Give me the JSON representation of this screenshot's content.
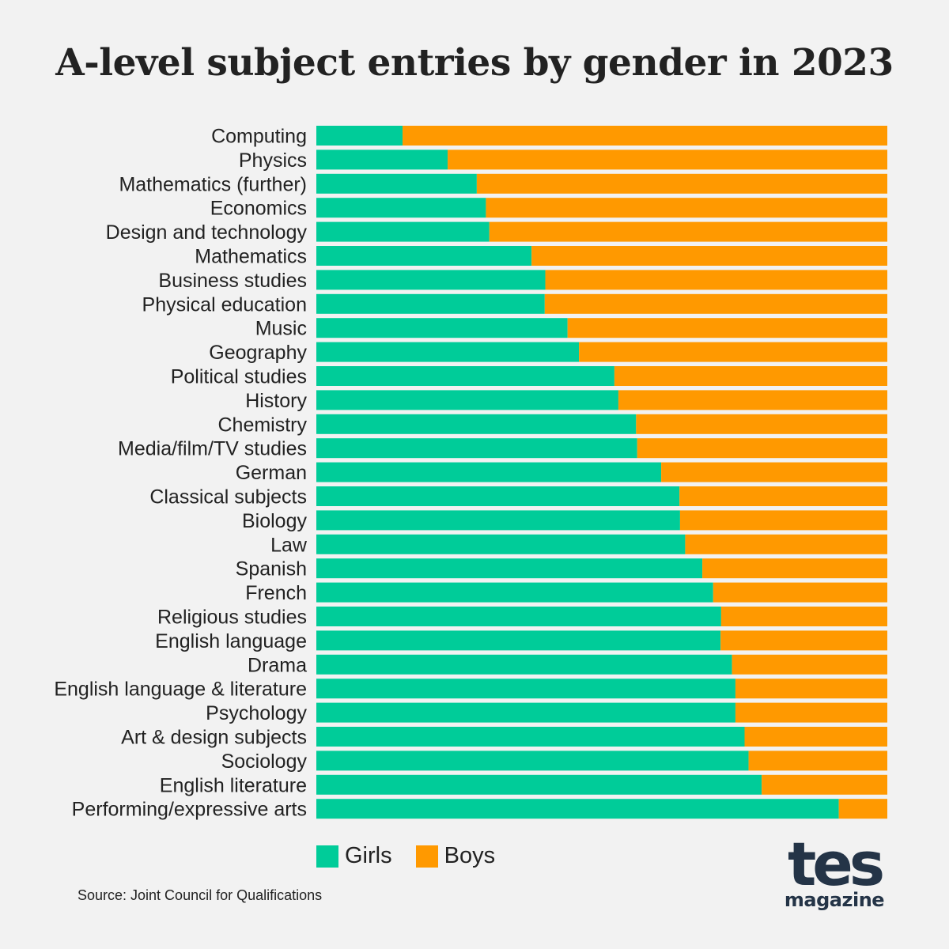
{
  "colors": {
    "girls": "#00cc99",
    "boys": "#ff9900",
    "background": "#f2f2f2",
    "logo": "#243447"
  },
  "source": "Source:  Joint Council for Qualifications",
  "logo": {
    "main": "tes",
    "sub": "magazine"
  },
  "chart_data": {
    "type": "bar",
    "orientation": "horizontal",
    "stacked": true,
    "normalized": true,
    "title": "A-level subject entries by gender in 2023",
    "xlabel": "",
    "ylabel": "",
    "xlim": [
      0,
      100
    ],
    "legend_position": "bottom",
    "categories": [
      "Computing",
      "Physics",
      "Mathematics (further)",
      "Economics",
      "Design and technology",
      "Mathematics",
      "Business studies",
      "Physical education",
      "Music",
      "Geography",
      "Political studies",
      "History",
      "Chemistry",
      "Media/film/TV studies",
      "German",
      "Classical subjects",
      "Biology",
      "Law",
      "Spanish",
      "French",
      "Religious studies",
      "English language",
      "Drama",
      "English language & literature",
      "Psychology",
      "Art & design subjects",
      "Sociology",
      "English literature",
      "Performing/expressive arts"
    ],
    "series": [
      {
        "name": "Girls",
        "values": [
          15.1,
          23.0,
          28.1,
          29.7,
          30.3,
          37.7,
          40.1,
          40.0,
          44.0,
          46.0,
          52.2,
          52.9,
          56.0,
          56.2,
          60.4,
          63.6,
          63.7,
          64.6,
          67.6,
          69.5,
          70.9,
          70.8,
          72.8,
          73.4,
          73.4,
          75.0,
          75.7,
          78.0,
          91.5
        ]
      },
      {
        "name": "Boys",
        "values": [
          84.9,
          77.0,
          71.9,
          70.3,
          69.7,
          62.3,
          59.9,
          60.0,
          56.0,
          54.0,
          47.8,
          47.1,
          44.0,
          43.8,
          39.6,
          36.4,
          36.3,
          35.4,
          32.4,
          30.5,
          29.1,
          29.2,
          27.2,
          26.6,
          26.6,
          25.0,
          24.3,
          22.0,
          8.5
        ]
      }
    ]
  }
}
